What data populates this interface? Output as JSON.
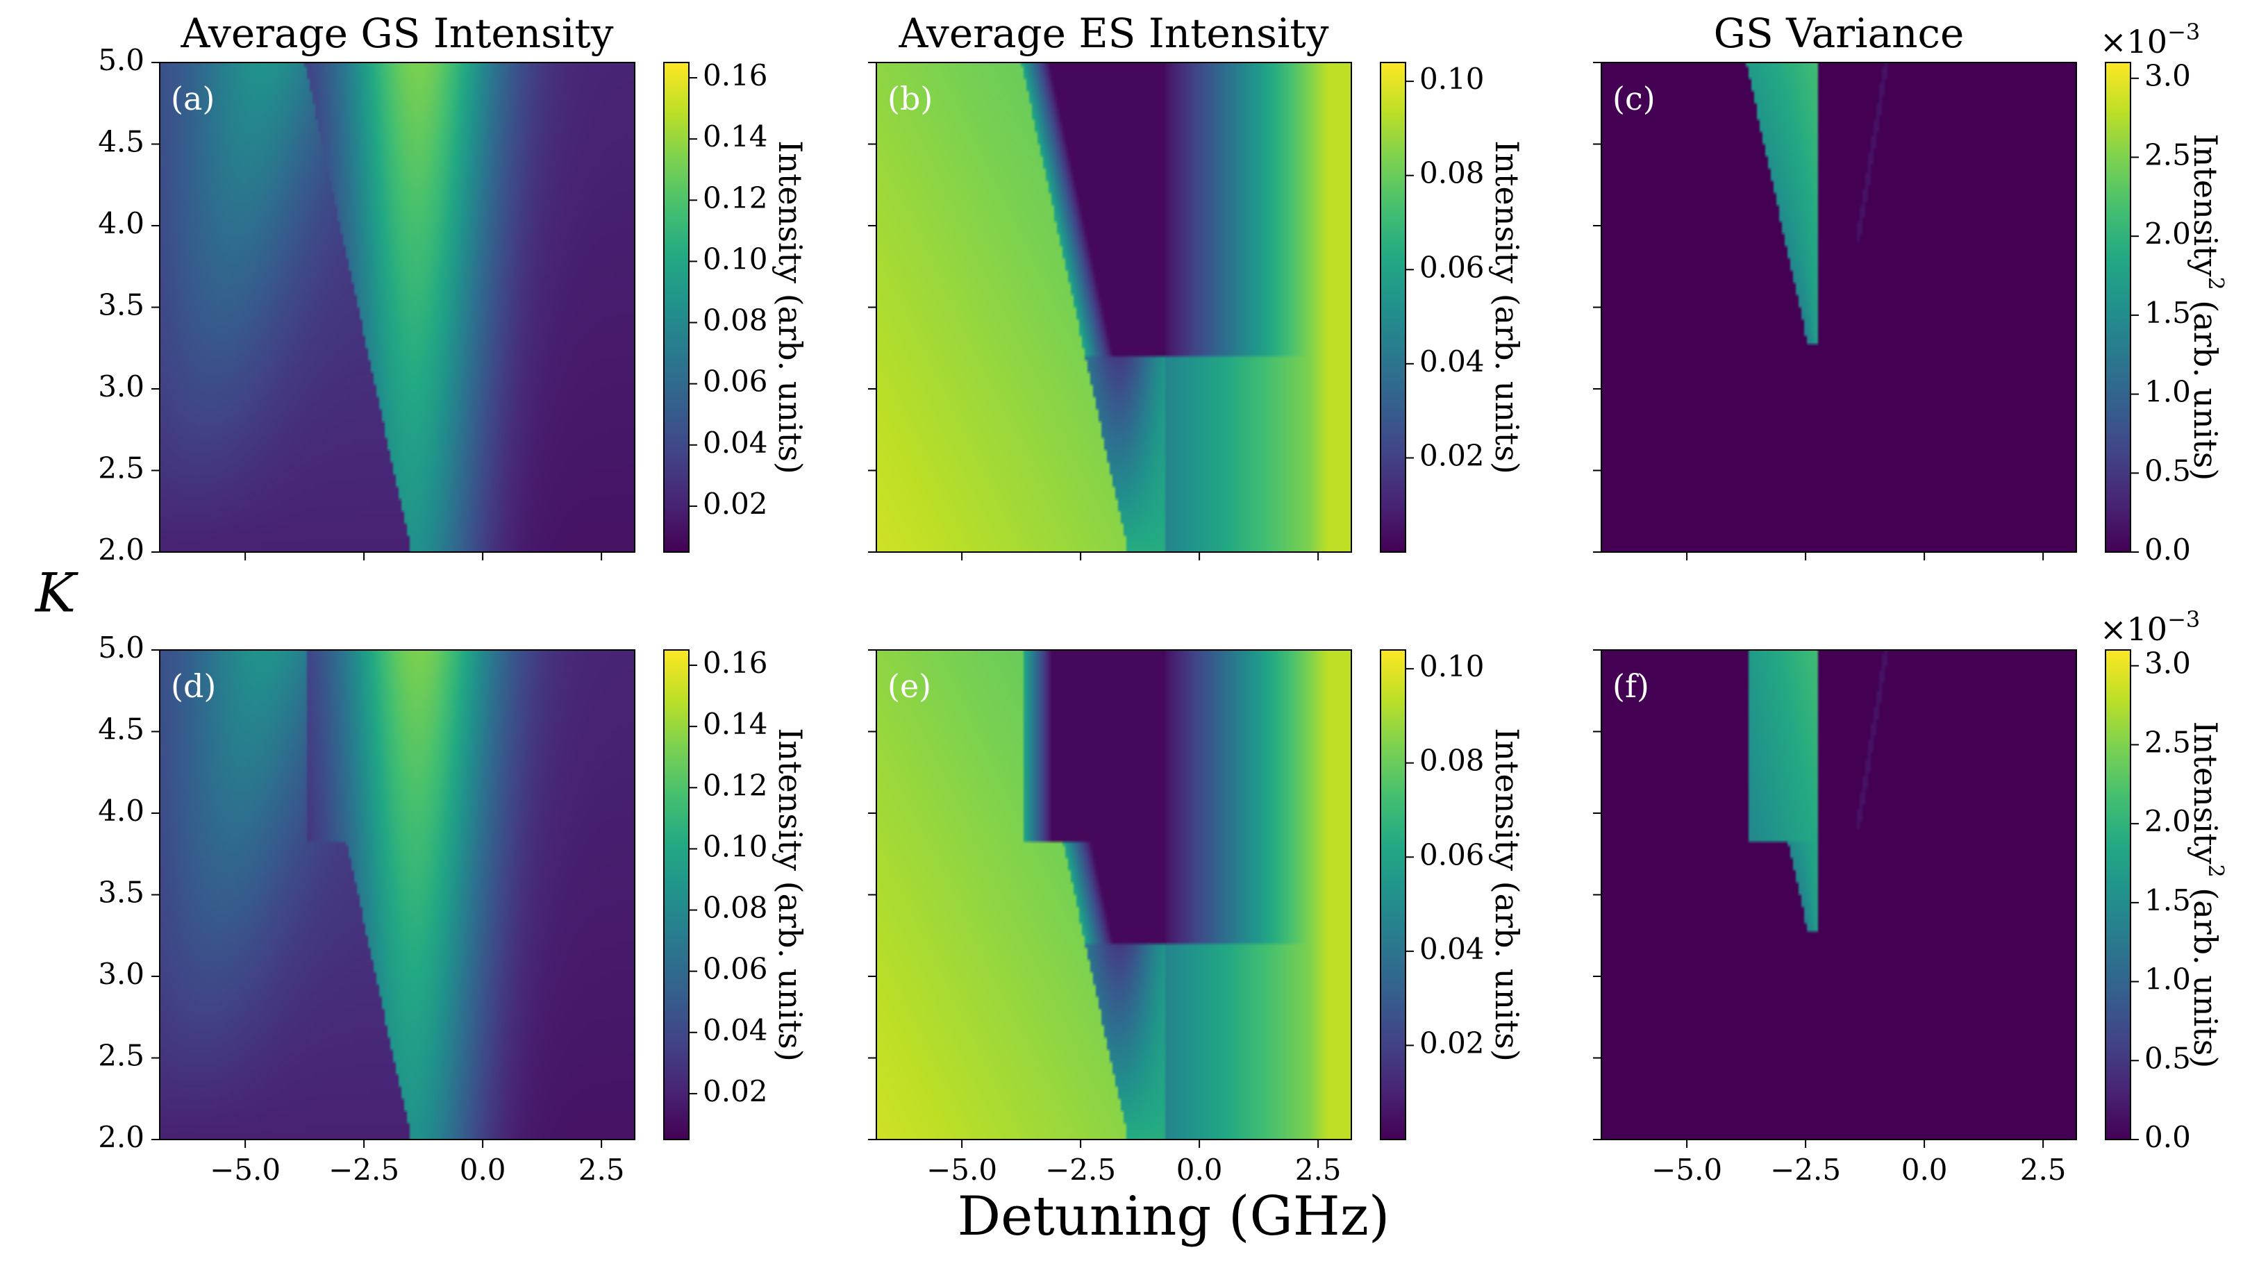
{
  "chart_data": {
    "type": "heatmap",
    "x_label": "Detuning (GHz)",
    "y_label": "K",
    "x_range": [
      -6.8,
      3.2
    ],
    "y_range": [
      2.0,
      5.0
    ],
    "x_ticks": [
      "−5.0",
      "−2.5",
      "0.0",
      "2.5"
    ],
    "x_tick_values": [
      -5.0,
      -2.5,
      0.0,
      2.5
    ],
    "y_ticks": [
      "2.0",
      "2.5",
      "3.0",
      "3.5",
      "4.0",
      "4.5",
      "5.0"
    ],
    "y_tick_values": [
      2.0,
      2.5,
      3.0,
      3.5,
      4.0,
      4.5,
      5.0
    ],
    "colormap": "viridis",
    "column_titles": [
      "Average GS Intensity",
      "Average ES Intensity",
      "GS Variance"
    ],
    "panels": [
      {
        "tag": "(a)",
        "row": 0,
        "col": 0,
        "kind": "gs",
        "colorbar": {
          "label": "Intensity (arb. units)",
          "range": [
            0.005,
            0.165
          ],
          "ticks": [
            "0.02",
            "0.04",
            "0.06",
            "0.08",
            "0.10",
            "0.12",
            "0.14",
            "0.16"
          ],
          "tick_values": [
            0.02,
            0.04,
            0.06,
            0.08,
            0.1,
            0.12,
            0.14,
            0.16
          ]
        }
      },
      {
        "tag": "(b)",
        "row": 0,
        "col": 1,
        "kind": "es",
        "colorbar": {
          "label": "Intensity (arb. units)",
          "range": [
            0.0,
            0.104
          ],
          "ticks": [
            "0.02",
            "0.04",
            "0.06",
            "0.08",
            "0.10"
          ],
          "tick_values": [
            0.02,
            0.04,
            0.06,
            0.08,
            0.1
          ]
        }
      },
      {
        "tag": "(c)",
        "row": 0,
        "col": 2,
        "kind": "var",
        "colorbar": {
          "label_main": "Intensity",
          "label_sup": "2",
          "label_rest": " (arb. units)",
          "scale_base": "×10",
          "scale_exp": "−3",
          "range": [
            0.0,
            3.1
          ],
          "ticks": [
            "0.0",
            "0.5",
            "1.0",
            "1.5",
            "2.0",
            "2.5",
            "3.0"
          ],
          "tick_values": [
            0.0,
            0.5,
            1.0,
            1.5,
            2.0,
            2.5,
            3.0
          ]
        }
      },
      {
        "tag": "(d)",
        "row": 1,
        "col": 0,
        "kind": "gs",
        "colorbar": {
          "label": "Intensity (arb. units)",
          "range": [
            0.005,
            0.165
          ],
          "ticks": [
            "0.02",
            "0.04",
            "0.06",
            "0.08",
            "0.10",
            "0.12",
            "0.14",
            "0.16"
          ],
          "tick_values": [
            0.02,
            0.04,
            0.06,
            0.08,
            0.1,
            0.12,
            0.14,
            0.16
          ]
        }
      },
      {
        "tag": "(e)",
        "row": 1,
        "col": 1,
        "kind": "es",
        "colorbar": {
          "label": "Intensity (arb. units)",
          "range": [
            0.0,
            0.104
          ],
          "ticks": [
            "0.02",
            "0.04",
            "0.06",
            "0.08",
            "0.10"
          ],
          "tick_values": [
            0.02,
            0.04,
            0.06,
            0.08,
            0.1
          ]
        }
      },
      {
        "tag": "(f)",
        "row": 1,
        "col": 2,
        "kind": "var",
        "colorbar": {
          "label_main": "Intensity",
          "label_sup": "2",
          "label_rest": " (arb. units)",
          "scale_base": "×10",
          "scale_exp": "−3",
          "range": [
            0.0,
            3.1
          ],
          "ticks": [
            "0.0",
            "0.5",
            "1.0",
            "1.5",
            "2.0",
            "2.5",
            "3.0"
          ],
          "tick_values": [
            0.0,
            0.5,
            1.0,
            1.5,
            2.0,
            2.5,
            3.0
          ]
        }
      }
    ]
  }
}
